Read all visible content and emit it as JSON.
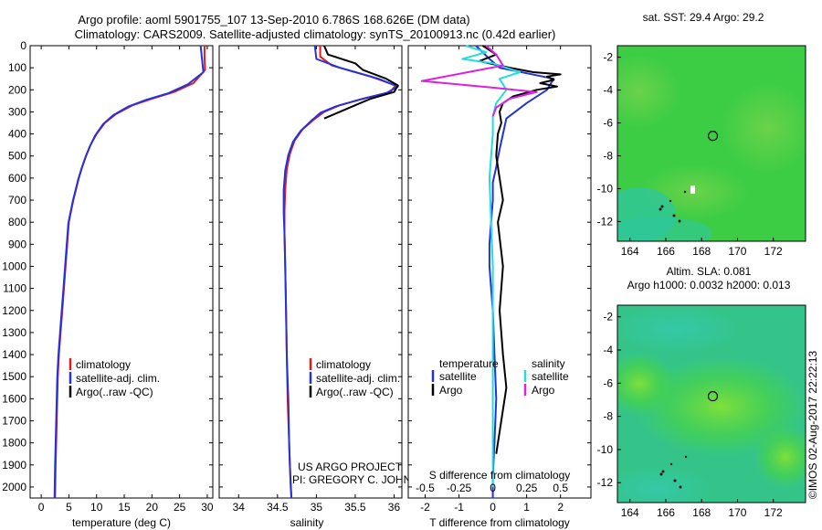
{
  "header": {
    "line1": "Argo profile: aoml 5901755_107 13-Sep-2010 6.786S 168.626E (DM data)",
    "line2": "Climatology: CARS2009. Satellite-adjusted climatology: synTS_20100913.nc (0.42d earlier)"
  },
  "colors": {
    "climatology": "#e41a1c",
    "satellite": "#2233dd",
    "argo": "#000000",
    "salinity_satellite": "#22dddd",
    "salinity_argo": "#dd22dd"
  },
  "credits": {
    "project": "US ARGO PROJECT",
    "pi": "PI: GREGORY C. JOHNSON",
    "imos": "©IMOS 02-Aug-2017 22:22:13"
  },
  "depth_axis": {
    "ylim": [
      0,
      2050
    ],
    "ticks": [
      0,
      100,
      200,
      300,
      400,
      500,
      600,
      700,
      800,
      900,
      1000,
      1100,
      1200,
      1300,
      1400,
      1500,
      1600,
      1700,
      1800,
      1900,
      2000
    ]
  },
  "chart_data": [
    {
      "id": "temperature",
      "type": "line",
      "xlabel": "temperature (deg C)",
      "xlim": [
        -2,
        31
      ],
      "xticks": [
        0,
        5,
        10,
        15,
        20,
        25,
        30
      ],
      "legend": [
        "climatology",
        "satellite-adj. clim.",
        "Argo(..raw -QC)"
      ],
      "series": [
        {
          "name": "climatology",
          "color_key": "climatology",
          "x": [
            29.5,
            29.5,
            29.6,
            27.5,
            24,
            20,
            16.5,
            13.5,
            11.5,
            10,
            8.9,
            8.1,
            7.4,
            6.8,
            6.3,
            5.8,
            5.4,
            5.0,
            4.7,
            4.4,
            4.1,
            3.8,
            3.5,
            3.2,
            3.0,
            2.8,
            2.6,
            2.5
          ],
          "depth": [
            0,
            50,
            110,
            170,
            210,
            240,
            270,
            310,
            350,
            400,
            450,
            500,
            550,
            600,
            650,
            700,
            750,
            800,
            900,
            1000,
            1100,
            1200,
            1300,
            1400,
            1500,
            1700,
            1900,
            2050
          ]
        },
        {
          "name": "satellite-adj. clim.",
          "color_key": "satellite",
          "x": [
            28.8,
            29.0,
            29.3,
            26.5,
            23,
            19,
            15.8,
            13,
            11.2,
            9.8,
            8.8,
            8.0,
            7.3,
            6.7,
            6.2,
            5.7,
            5.3,
            4.9,
            4.6,
            4.3,
            4.0,
            3.7,
            3.4,
            3.1,
            2.9,
            2.7,
            2.5,
            2.4
          ],
          "depth": [
            0,
            50,
            120,
            175,
            215,
            245,
            275,
            315,
            355,
            405,
            455,
            505,
            555,
            605,
            655,
            705,
            755,
            805,
            905,
            1005,
            1105,
            1205,
            1305,
            1405,
            1505,
            1705,
            1905,
            2050
          ]
        },
        {
          "name": "Argo(..raw -QC)",
          "color_key": "argo",
          "x": [],
          "depth": []
        }
      ]
    },
    {
      "id": "salinity",
      "type": "line",
      "xlabel": "salinity",
      "xlim": [
        33.75,
        36.1
      ],
      "xticks": [
        34,
        34.5,
        35,
        35.5,
        36
      ],
      "legend": [
        "climatology",
        "satellite-adj. clim.",
        "Argo(..raw -QC)"
      ],
      "series": [
        {
          "name": "climatology",
          "color_key": "climatology",
          "x": [
            35.05,
            35.05,
            35.2,
            35.7,
            36.02,
            35.95,
            35.6,
            35.3,
            35.1,
            34.95,
            34.82,
            34.72,
            34.66,
            34.62,
            34.6,
            34.59,
            34.59,
            34.6,
            34.61,
            34.62,
            34.63,
            34.65,
            34.66,
            34.67,
            34.68
          ],
          "depth": [
            0,
            50,
            90,
            140,
            180,
            210,
            240,
            270,
            300,
            340,
            380,
            430,
            490,
            560,
            650,
            750,
            850,
            1000,
            1200,
            1400,
            1600,
            1800,
            1900,
            2000,
            2050
          ]
        },
        {
          "name": "satellite-adj. clim.",
          "color_key": "satellite",
          "x": [
            34.98,
            35.0,
            35.3,
            35.8,
            36.05,
            35.9,
            35.55,
            35.25,
            35.05,
            34.92,
            34.8,
            34.7,
            34.64,
            34.6,
            34.58,
            34.58,
            34.59,
            34.6,
            34.61,
            34.62,
            34.64,
            34.65,
            34.66,
            34.68
          ],
          "depth": [
            0,
            60,
            100,
            150,
            185,
            215,
            245,
            275,
            305,
            345,
            385,
            435,
            495,
            565,
            655,
            755,
            855,
            1005,
            1205,
            1405,
            1605,
            1805,
            1905,
            2050
          ]
        },
        {
          "name": "Argo(..raw -QC)",
          "color_key": "argo",
          "x": [
            35.1,
            35.15,
            35.5,
            35.6,
            35.9,
            36.05,
            36.0,
            35.7,
            35.5,
            35.3,
            35.1
          ],
          "depth": [
            0,
            40,
            80,
            110,
            150,
            180,
            210,
            240,
            270,
            300,
            330
          ]
        }
      ]
    },
    {
      "id": "difference",
      "type": "line",
      "xlabel": "T difference from climatology",
      "title": "S difference from climatology",
      "xlim": [
        -2.5,
        2.9
      ],
      "xticks": [
        -2,
        -1,
        0,
        1,
        2
      ],
      "xtick_labels": [
        "-2",
        "-1",
        "0",
        "1",
        "2"
      ],
      "top_xticks": [
        -0.5,
        -0.25,
        0,
        0.25,
        0.5
      ],
      "top_xtick_positions_T": [
        -2,
        -1,
        0,
        1,
        2
      ],
      "legend": {
        "temperature_heading": "temperature",
        "salinity_heading": "salinity",
        "temperature": [
          "satellite",
          "Argo"
        ],
        "salinity": [
          "satellite",
          "Argo"
        ]
      },
      "series": [
        {
          "name": "T satellite",
          "color_key": "satellite",
          "x": [
            -0.5,
            -0.3,
            -0.1,
            0.2,
            1.8,
            1.6,
            1.0,
            0.4,
            0.3,
            0.2,
            0.1,
            0.0,
            0.0,
            -0.05,
            -0.1,
            -0.1,
            -0.05,
            0.0,
            0.05,
            0.1,
            0.05,
            0.0,
            0.0
          ],
          "depth": [
            0,
            30,
            60,
            100,
            150,
            200,
            260,
            330,
            400,
            470,
            550,
            620,
            700,
            800,
            900,
            1000,
            1100,
            1200,
            1400,
            1600,
            1800,
            1950,
            2050
          ]
        },
        {
          "name": "T Argo",
          "color_key": "argo",
          "x": [
            -0.3,
            0.1,
            -0.4,
            0.5,
            1.2,
            2.0,
            1.6,
            1.8,
            1.4,
            1.9,
            1.3,
            0.6,
            0.3,
            0.2,
            0.25,
            0.15,
            0.1,
            0.2,
            0.3,
            0.15,
            0.3,
            0.2,
            0.3,
            0.4,
            0.3,
            0.2,
            0.1
          ],
          "depth": [
            0,
            40,
            70,
            100,
            120,
            130,
            140,
            155,
            170,
            185,
            200,
            230,
            260,
            300,
            350,
            400,
            500,
            600,
            700,
            800,
            1000,
            1200,
            1400,
            1550,
            1650,
            1750,
            1850
          ]
        },
        {
          "name": "S satellite",
          "color_key": "salinity_satellite",
          "x": [
            -0.8,
            -0.2,
            -0.9,
            0.0,
            0.8,
            0.2,
            0.4,
            0.1,
            0.0,
            0.0,
            -0.1,
            -0.05,
            0.0,
            0.0,
            0.0
          ],
          "depth": [
            0,
            30,
            60,
            80,
            120,
            150,
            200,
            260,
            320,
            400,
            600,
            800,
            1000,
            1400,
            2000
          ]
        },
        {
          "name": "S Argo",
          "color_key": "salinity_argo",
          "x": [
            -0.2,
            0.1,
            0.3,
            -2.1,
            0.0,
            1.3,
            0.5,
            0.1,
            0.0
          ],
          "depth": [
            0,
            40,
            90,
            160,
            190,
            210,
            240,
            280,
            320
          ]
        }
      ]
    },
    {
      "id": "sst_map",
      "type": "heatmap",
      "title": "sat. SST: 29.4  Argo: 29.2",
      "xlim": [
        163.3,
        173.8
      ],
      "ylim": [
        -13.2,
        -1.3
      ],
      "xticks": [
        164,
        166,
        168,
        170,
        172
      ],
      "yticks": [
        -2,
        -4,
        -6,
        -8,
        -10,
        -12
      ],
      "argo_location": {
        "lon": 168.626,
        "lat": -6.786
      }
    },
    {
      "id": "sla_map",
      "type": "heatmap",
      "title": "Altim. SLA: 0.081",
      "subtitle": "Argo h1000: 0.0032 h2000: 0.013",
      "xlim": [
        163.3,
        173.8
      ],
      "ylim": [
        -13.2,
        -1.3
      ],
      "xticks": [
        164,
        166,
        168,
        170,
        172
      ],
      "yticks": [
        -2,
        -4,
        -6,
        -8,
        -10,
        -12
      ],
      "argo_location": {
        "lon": 168.626,
        "lat": -6.786
      }
    }
  ]
}
